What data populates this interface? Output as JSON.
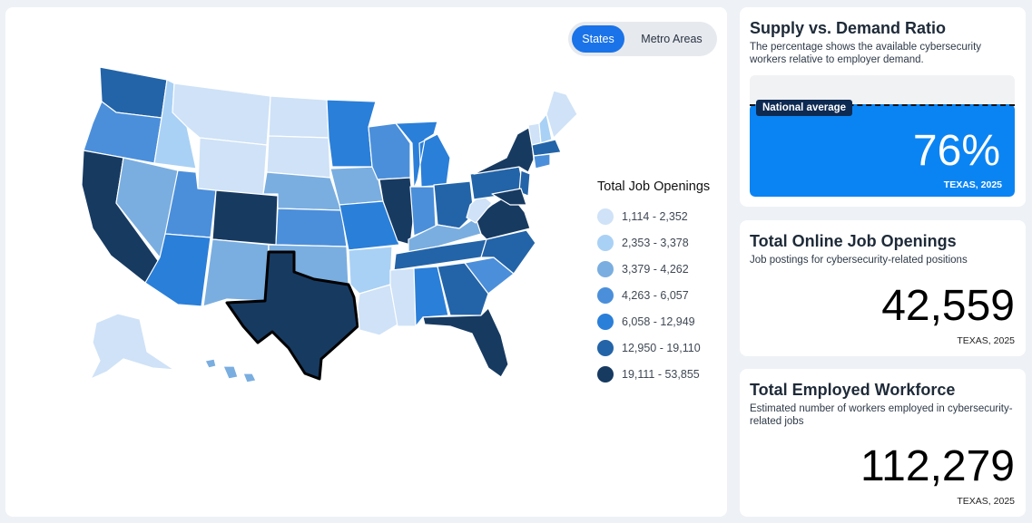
{
  "toggle": {
    "states_label": "States",
    "metro_label": "Metro Areas",
    "active": "States"
  },
  "legend": {
    "title": "Total Job Openings",
    "items": [
      {
        "label": "1,114 - 2,352",
        "color": "#cfe2f7"
      },
      {
        "label": "2,353 - 3,378",
        "color": "#a9d1f5"
      },
      {
        "label": "3,379 - 4,262",
        "color": "#7aaee0"
      },
      {
        "label": "4,263 - 6,057",
        "color": "#4b8fdb"
      },
      {
        "label": "6,058 - 12,949",
        "color": "#2a7fd9"
      },
      {
        "label": "12,950 - 19,110",
        "color": "#2364a8"
      },
      {
        "label": "19,111 - 53,855",
        "color": "#173a61"
      }
    ]
  },
  "map": {
    "selected_state": "Texas"
  },
  "supply_card": {
    "title": "Supply vs. Demand Ratio",
    "subtitle": "The percentage shows the available cybersecurity workers relative to employer demand.",
    "national_label": "National average",
    "value": "76%",
    "fill_fraction": 0.76,
    "location": "TEXAS, 2025",
    "fill_color": "#0b84f3"
  },
  "openings_card": {
    "title": "Total Online Job Openings",
    "subtitle": "Job postings for cybersecurity-related positions",
    "value": "42,559",
    "location": "TEXAS, 2025"
  },
  "workforce_card": {
    "title": "Total Employed Workforce",
    "subtitle": "Estimated number of workers employed in cybersecurity-related jobs",
    "value": "112,279",
    "location": "TEXAS, 2025"
  }
}
